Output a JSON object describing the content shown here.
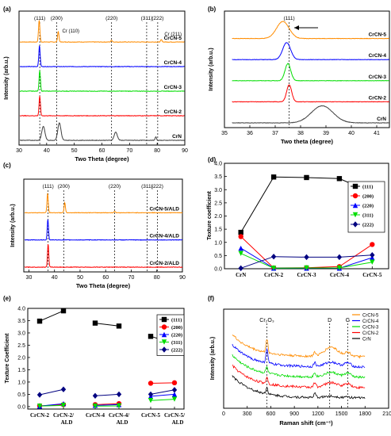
{
  "chart_data": [
    {
      "panel": "(a)",
      "type": "line",
      "xlabel": "Two Theta (degree)",
      "ylabel": "Intensity (arb.u.)",
      "xlim": [
        30,
        90
      ],
      "xticks": [
        "30",
        "40",
        "50",
        "60",
        "70",
        "80",
        "90"
      ],
      "ref_lines": [
        {
          "label": "(111)",
          "x": 37.5
        },
        {
          "label": "(200)",
          "x": 43.6
        },
        {
          "label": "(220)",
          "x": 63.5
        },
        {
          "label": "(311)",
          "x": 76.2
        },
        {
          "label": "(222)",
          "x": 80.2
        }
      ],
      "annotations": [
        "Cr (110)",
        "Cr (211)"
      ],
      "series": [
        {
          "name": "CrCN-5",
          "color": "#ff8c00",
          "offset": 4,
          "peaks": [
            [
              37.3,
              0.95
            ],
            [
              44.2,
              0.45
            ],
            [
              63.5,
              0.08
            ],
            [
              81.5,
              0.1
            ]
          ]
        },
        {
          "name": "CrCN-4",
          "color": "#0000ff",
          "offset": 3,
          "peaks": [
            [
              37.4,
              0.9
            ]
          ]
        },
        {
          "name": "CrCN-3",
          "color": "#00dd00",
          "offset": 2,
          "peaks": [
            [
              37.5,
              0.9
            ]
          ]
        },
        {
          "name": "CrCN-2",
          "color": "#ff0000",
          "offset": 1,
          "peaks": [
            [
              37.5,
              0.85
            ]
          ]
        },
        {
          "name": "CrN",
          "color": "#404040",
          "offset": 0,
          "peaks": [
            [
              38.8,
              0.6
            ],
            [
              44.6,
              0.75
            ],
            [
              65.0,
              0.35
            ],
            [
              79.5,
              0.15
            ]
          ]
        }
      ]
    },
    {
      "panel": "(b)",
      "type": "line",
      "xlabel": "Two theta (degree)",
      "ylabel": "Intensity (arb.u.)",
      "xlim": [
        35,
        41.5
      ],
      "xticks": [
        "35",
        "36",
        "37",
        "38",
        "39",
        "40",
        "41"
      ],
      "ref_lines": [
        {
          "label": "(111)",
          "x": 37.55
        }
      ],
      "series": [
        {
          "name": "CrCN-5",
          "color": "#ff8c00",
          "offset": 4,
          "center": 37.3,
          "width": 0.35
        },
        {
          "name": "CrCN-4",
          "color": "#0000ff",
          "offset": 3,
          "center": 37.45,
          "width": 0.22
        },
        {
          "name": "CrCN-3",
          "color": "#00dd00",
          "offset": 2,
          "center": 37.5,
          "width": 0.16
        },
        {
          "name": "CrCN-2",
          "color": "#ff0000",
          "offset": 1,
          "center": 37.55,
          "width": 0.14
        },
        {
          "name": "CrN",
          "color": "#404040",
          "offset": 0,
          "center": 38.85,
          "width": 0.6
        }
      ]
    },
    {
      "panel": "(c)",
      "type": "line",
      "xlabel": "Two Theta (degree)",
      "ylabel": "Intensity (arb.u.)",
      "xlim": [
        28,
        90
      ],
      "xticks": [
        "30",
        "40",
        "50",
        "60",
        "70",
        "80",
        "90"
      ],
      "ref_lines": [
        {
          "label": "(111)",
          "x": 37.5
        },
        {
          "label": "(200)",
          "x": 43.6
        },
        {
          "label": "(220)",
          "x": 63.5
        },
        {
          "label": "(311)",
          "x": 76.2
        },
        {
          "label": "(222)",
          "x": 80.2
        }
      ],
      "series": [
        {
          "name": "CrCN-5/ALD",
          "color": "#ff8c00",
          "offset": 2,
          "peaks": [
            [
              37.3,
              0.75
            ],
            [
              44.0,
              0.4
            ],
            [
              63.5,
              0.06
            ]
          ]
        },
        {
          "name": "CrCN-4/ALD",
          "color": "#0000ff",
          "offset": 1,
          "peaks": [
            [
              37.4,
              0.8
            ]
          ]
        },
        {
          "name": "CrCN-2/ALD",
          "color": "#ff0000",
          "offset": 0,
          "peaks": [
            [
              37.5,
              0.9
            ]
          ]
        }
      ]
    },
    {
      "panel": "(d)",
      "type": "line",
      "ylabel": "Texture coefficient",
      "ylim": [
        0,
        4
      ],
      "yticks": [
        "0.0",
        "0.5",
        "1.0",
        "1.5",
        "2.0",
        "2.5",
        "3.0",
        "3.5",
        "4.0"
      ],
      "categories": [
        "CrN",
        "CrCN-2",
        "CrCN-3",
        "CrCN-4",
        "CrCN-5"
      ],
      "series": [
        {
          "name": "(111)",
          "color": "#000000",
          "marker": "square",
          "values": [
            1.38,
            3.48,
            3.46,
            3.42,
            2.88
          ]
        },
        {
          "name": "(200)",
          "color": "#ff0000",
          "marker": "circle",
          "values": [
            1.22,
            0.03,
            0.04,
            0.08,
            0.92
          ]
        },
        {
          "name": "(220)",
          "color": "#0000ff",
          "marker": "triangle",
          "values": [
            0.78,
            0.02,
            0.02,
            0.02,
            0.42
          ]
        },
        {
          "name": "(311)",
          "color": "#00dd00",
          "marker": "triangle-down",
          "values": [
            0.58,
            0.02,
            0.03,
            0.03,
            0.25
          ]
        },
        {
          "name": "(222)",
          "color": "#000080",
          "marker": "diamond",
          "values": [
            0.02,
            0.46,
            0.44,
            0.44,
            0.52
          ]
        }
      ]
    },
    {
      "panel": "(e)",
      "type": "line",
      "ylabel": "Texture Coefficient",
      "ylim": [
        -0.1,
        4.0
      ],
      "yticks": [
        "0.0",
        "0.5",
        "1.0",
        "1.5",
        "2.0",
        "2.5",
        "3.0",
        "3.5",
        "4.0"
      ],
      "categories": [
        "CrCN-2",
        "CrCN-2/ ALD",
        "CrCN-4",
        "CrCN-4/ ALD",
        "CrCN-5",
        "CrCN-5/ ALD"
      ],
      "series": [
        {
          "name": "(111)",
          "color": "#000000",
          "marker": "square",
          "values": [
            3.48,
            3.9,
            3.4,
            3.28,
            2.86,
            2.58
          ]
        },
        {
          "name": "(200)",
          "color": "#ff0000",
          "marker": "circle",
          "values": [
            0.03,
            0.08,
            0.08,
            0.12,
            0.95,
            0.97
          ]
        },
        {
          "name": "(220)",
          "color": "#0000ff",
          "marker": "triangle",
          "values": [
            0.02,
            0.12,
            0.05,
            0.08,
            0.42,
            0.5
          ]
        },
        {
          "name": "(311)",
          "color": "#00dd00",
          "marker": "triangle-down",
          "values": [
            0.02,
            0.05,
            0.02,
            0.03,
            0.25,
            0.3
          ]
        },
        {
          "name": "(222)",
          "color": "#000080",
          "marker": "diamond",
          "values": [
            0.48,
            0.7,
            0.44,
            0.5,
            0.5,
            0.68
          ]
        }
      ]
    },
    {
      "panel": "(f)",
      "type": "line",
      "xlabel": "Raman shift (cm⁻¹)",
      "ylabel": "Intensity (arb.u.)",
      "xlim": [
        0,
        2100
      ],
      "xticks": [
        "0",
        "300",
        "600",
        "900",
        "1200",
        "1500",
        "1800",
        "2100"
      ],
      "ref_lines": [
        {
          "label": "Cr₂O₃",
          "x": 550
        },
        {
          "label": "D",
          "x": 1350
        },
        {
          "label": "G",
          "x": 1580
        }
      ],
      "series": [
        {
          "name": "CrCN-5",
          "color": "#ff8c00",
          "offset": 4
        },
        {
          "name": "CrCN-4",
          "color": "#0000ff",
          "offset": 3
        },
        {
          "name": "CrCN-3",
          "color": "#00dd00",
          "offset": 2
        },
        {
          "name": "CrCN-2",
          "color": "#ff0000",
          "offset": 1
        },
        {
          "name": "CrN",
          "color": "#000000",
          "offset": 0
        }
      ]
    }
  ]
}
